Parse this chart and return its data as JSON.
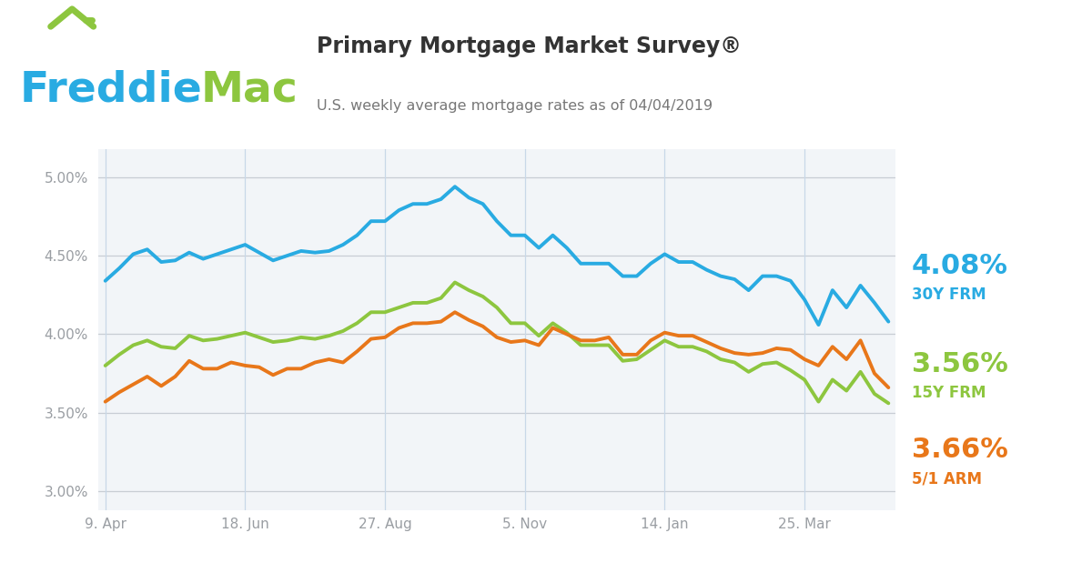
{
  "title": "Primary Mortgage Market Survey®",
  "subtitle": "U.S. weekly average mortgage rates as of 04/04/2019",
  "x_labels": [
    "9. Apr",
    "18. Jun",
    "27. Aug",
    "5. Nov",
    "14. Jan",
    "25. Mar"
  ],
  "x_tick_positions": [
    0,
    10,
    20,
    30,
    40,
    50
  ],
  "y_ticks": [
    3.0,
    3.5,
    4.0,
    4.5,
    5.0
  ],
  "y_labels": [
    "3.00%",
    "3.50%",
    "4.00%",
    "4.50%",
    "5.00%"
  ],
  "color_30y": "#29ABE2",
  "color_15y": "#8DC63F",
  "color_arm": "#E8771A",
  "color_freddie_blue": "#29ABE2",
  "color_freddie_green": "#8DC63F",
  "label_30y_pct": "4.08%",
  "label_30y_name": "30Y FRM",
  "label_15y_pct": "3.56%",
  "label_15y_name": "15Y FRM",
  "label_arm_pct": "3.66%",
  "label_arm_name": "5/1 ARM",
  "y30_frm": [
    4.34,
    4.42,
    4.51,
    4.54,
    4.46,
    4.47,
    4.52,
    4.48,
    4.51,
    4.54,
    4.57,
    4.52,
    4.47,
    4.5,
    4.53,
    4.52,
    4.53,
    4.57,
    4.63,
    4.72,
    4.72,
    4.79,
    4.83,
    4.83,
    4.86,
    4.94,
    4.87,
    4.83,
    4.72,
    4.63,
    4.63,
    4.55,
    4.63,
    4.55,
    4.45,
    4.45,
    4.45,
    4.37,
    4.37,
    4.45,
    4.51,
    4.46,
    4.46,
    4.41,
    4.37,
    4.35,
    4.28,
    4.37,
    4.37,
    4.34,
    4.22,
    4.06,
    4.28,
    4.17,
    4.31,
    4.2,
    4.08
  ],
  "y15_frm": [
    3.8,
    3.87,
    3.93,
    3.96,
    3.92,
    3.91,
    3.99,
    3.96,
    3.97,
    3.99,
    4.01,
    3.98,
    3.95,
    3.96,
    3.98,
    3.97,
    3.99,
    4.02,
    4.07,
    4.14,
    4.14,
    4.17,
    4.2,
    4.2,
    4.23,
    4.33,
    4.28,
    4.24,
    4.17,
    4.07,
    4.07,
    3.99,
    4.07,
    4.01,
    3.93,
    3.93,
    3.93,
    3.83,
    3.84,
    3.9,
    3.96,
    3.92,
    3.92,
    3.89,
    3.84,
    3.82,
    3.76,
    3.81,
    3.82,
    3.77,
    3.71,
    3.57,
    3.71,
    3.64,
    3.76,
    3.62,
    3.56
  ],
  "y51_arm": [
    3.57,
    3.63,
    3.68,
    3.73,
    3.67,
    3.73,
    3.83,
    3.78,
    3.78,
    3.82,
    3.8,
    3.79,
    3.74,
    3.78,
    3.78,
    3.82,
    3.84,
    3.82,
    3.89,
    3.97,
    3.98,
    4.04,
    4.07,
    4.07,
    4.08,
    4.14,
    4.09,
    4.05,
    3.98,
    3.95,
    3.96,
    3.93,
    4.04,
    4.0,
    3.96,
    3.96,
    3.98,
    3.87,
    3.87,
    3.96,
    4.01,
    3.99,
    3.99,
    3.95,
    3.91,
    3.88,
    3.87,
    3.88,
    3.91,
    3.9,
    3.84,
    3.8,
    3.92,
    3.84,
    3.96,
    3.75,
    3.66
  ],
  "bg_color": "#FFFFFF",
  "plot_bg": "#F2F5F8",
  "grid_color": "#C8CDD4",
  "tick_color": "#9A9EA3",
  "vline_color": "#C8D8E8",
  "divider_color": "#DDDDDD"
}
